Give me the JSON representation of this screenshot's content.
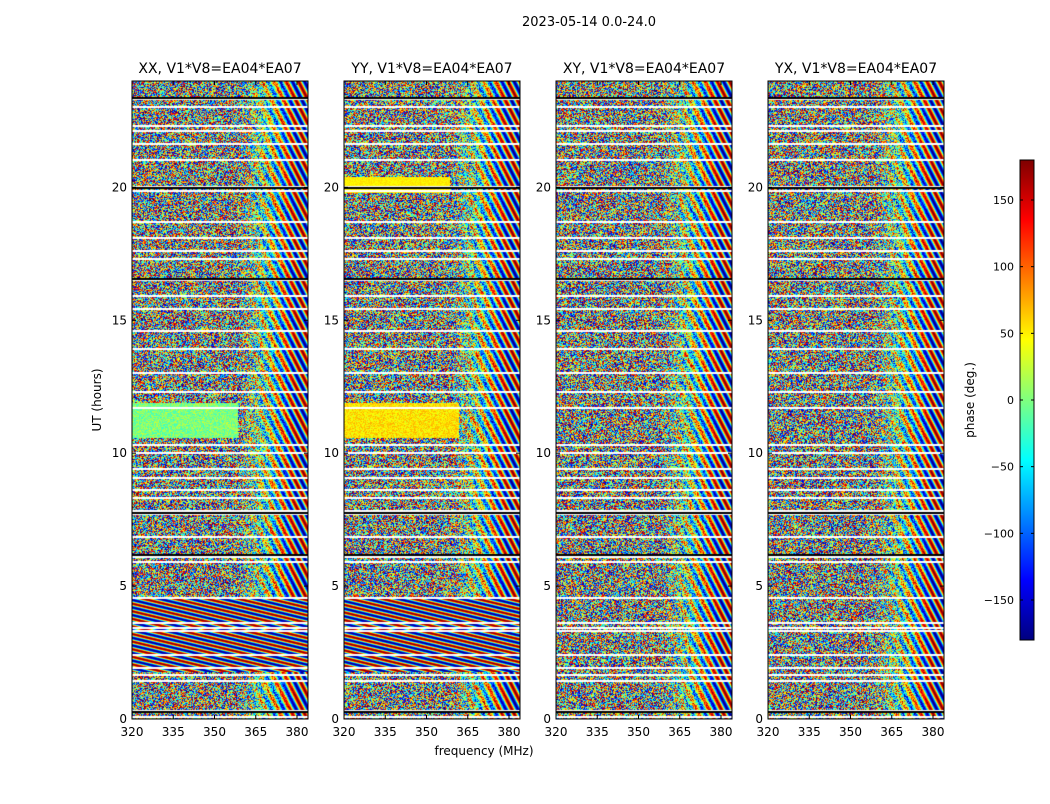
{
  "figure": {
    "suptitle": "2023-05-14 0.0-24.0",
    "xlabel": "frequency (MHz)",
    "ylabel": "UT (hours)"
  },
  "colorbar": {
    "label": "phase (deg.)",
    "range": [
      -180,
      180
    ],
    "ticks": [
      "150",
      "100",
      "50",
      "0",
      "−50",
      "−100",
      "−150"
    ],
    "tick_values": [
      150,
      100,
      50,
      0,
      -50,
      -100,
      -150
    ],
    "colormap": [
      "#00007f",
      "#0000ff",
      "#007fff",
      "#00ffff",
      "#7fff7f",
      "#ffff00",
      "#ff7f00",
      "#ff0000",
      "#7f0000"
    ]
  },
  "chart_data": {
    "type": "heatmap",
    "title": "2023-05-14 0.0-24.0",
    "xlabel": "frequency (MHz)",
    "ylabel": "UT (hours)",
    "xlim": [
      320,
      384
    ],
    "ylim": [
      0,
      24
    ],
    "x_ticks": [
      320,
      335,
      350,
      365,
      380
    ],
    "x_tick_labels": [
      "320",
      "335",
      "350",
      "365",
      "380"
    ],
    "y_ticks": [
      0,
      5,
      10,
      15,
      20
    ],
    "y_tick_labels": [
      "0",
      "5",
      "10",
      "15",
      "20"
    ],
    "value": "phase (deg.)",
    "vrange": [
      -180,
      180
    ],
    "panels": [
      {
        "title": "XX, V1*V8=EA04*EA07",
        "pol": "XX"
      },
      {
        "title": "YY, V1*V8=EA04*EA07",
        "pol": "YY"
      },
      {
        "title": "XY, V1*V8=EA04*EA07",
        "pol": "XY"
      },
      {
        "title": "YX, V1*V8=EA04*EA07",
        "pol": "YX"
      }
    ],
    "flagged_gaps_hours": [
      0.1,
      0.35,
      1.45,
      1.7,
      1.95,
      2.45,
      3.35,
      3.45,
      3.65,
      4.6,
      5.95,
      6.15,
      6.9,
      7.75,
      7.85,
      8.35,
      8.65,
      9.1,
      9.45,
      10.05,
      10.35,
      11.75,
      12.35,
      13.05,
      13.95,
      14.65,
      15.45,
      15.95,
      16.55,
      17.35,
      17.65,
      18.15,
      18.75,
      19.9,
      20.05,
      21.05,
      21.65,
      22.15,
      22.35,
      23.05,
      23.35
    ]
  }
}
